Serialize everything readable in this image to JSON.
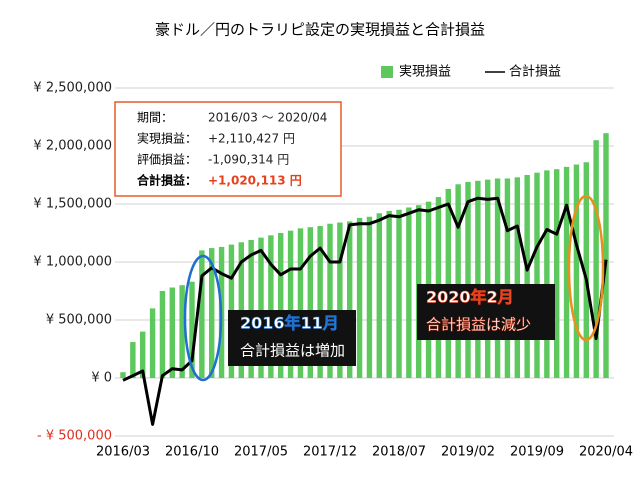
{
  "chart_data": {
    "type": "bar_line",
    "title": "豪ドル／円のトラリピ設定の実現損益と合計損益",
    "categories": [
      "2016/03",
      null,
      null,
      null,
      null,
      null,
      null,
      "2016/10",
      null,
      null,
      null,
      null,
      null,
      null,
      "2017/05",
      null,
      null,
      null,
      null,
      null,
      null,
      "2017/12",
      null,
      null,
      null,
      null,
      null,
      null,
      "2018/07",
      null,
      null,
      null,
      null,
      null,
      null,
      "2019/02",
      null,
      null,
      null,
      null,
      null,
      null,
      "2019/09",
      null,
      null,
      null,
      null,
      null,
      null,
      "2020/04"
    ],
    "series": [
      {
        "name": "実現損益",
        "type": "bar",
        "color": "#5dc85d",
        "values": [
          50000,
          310000,
          400000,
          600000,
          750000,
          780000,
          800000,
          830000,
          1100000,
          1120000,
          1130000,
          1150000,
          1170000,
          1190000,
          1210000,
          1230000,
          1250000,
          1270000,
          1290000,
          1300000,
          1310000,
          1330000,
          1340000,
          1350000,
          1380000,
          1390000,
          1420000,
          1440000,
          1450000,
          1470000,
          1490000,
          1520000,
          1560000,
          1630000,
          1670000,
          1690000,
          1700000,
          1710000,
          1720000,
          1720000,
          1730000,
          1750000,
          1770000,
          1790000,
          1800000,
          1820000,
          1840000,
          1860000,
          2050000,
          2110427
        ]
      },
      {
        "name": "合計損益",
        "type": "line",
        "color": "#000000",
        "values": [
          -20000,
          20000,
          60000,
          -400000,
          20000,
          80000,
          70000,
          150000,
          880000,
          950000,
          900000,
          860000,
          1000000,
          1060000,
          1100000,
          980000,
          890000,
          940000,
          940000,
          1050000,
          1120000,
          1000000,
          1000000,
          1320000,
          1330000,
          1330000,
          1360000,
          1400000,
          1390000,
          1420000,
          1450000,
          1440000,
          1470000,
          1500000,
          1300000,
          1520000,
          1550000,
          1540000,
          1550000,
          1270000,
          1310000,
          930000,
          1130000,
          1280000,
          1240000,
          1490000,
          1150000,
          850000,
          340000,
          1020113
        ]
      }
    ],
    "ylim": [
      -500000,
      2500000
    ],
    "yticks": [
      {
        "value": -500000,
        "label": "- ¥ 500,000"
      },
      {
        "value": 0,
        "label": "¥ 0"
      },
      {
        "value": 500000,
        "label": "¥ 500,000"
      },
      {
        "value": 1000000,
        "label": "¥ 1,000,000"
      },
      {
        "value": 1500000,
        "label": "¥ 1,500,000"
      },
      {
        "value": 2000000,
        "label": "¥ 2,000,000"
      },
      {
        "value": 2500000,
        "label": "¥ 2,500,000"
      }
    ],
    "grid": true,
    "legend": "top-right",
    "summary": [
      {
        "label": "期間：",
        "value": "2016/03 ～ 2020/04"
      },
      {
        "label": "実現損益：",
        "value": "+2,110,427 円"
      },
      {
        "label": "評価損益：",
        "value": "-1,090,314 円"
      },
      {
        "label": "合計損益：",
        "value": "+1,020,113 円"
      }
    ],
    "callouts": [
      {
        "heading": "2016年11月",
        "text": "合計損益は増加"
      },
      {
        "heading": "2020年2月",
        "text": "合計損益は減少"
      }
    ]
  }
}
